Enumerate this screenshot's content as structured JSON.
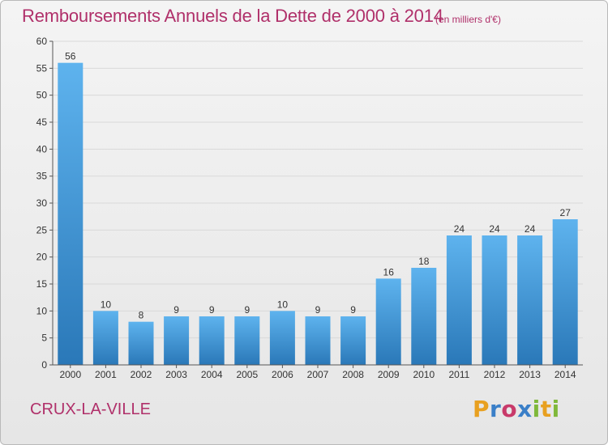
{
  "page": {
    "title": "Remboursements Annuels de la Dette de 2000 à 2014",
    "unit": "(en milliers d'€)",
    "commune": "CRUX-LA-VILLE",
    "logo": "Proxiti"
  },
  "colors": {
    "title": "#b0306a",
    "bar_light": "#5eb3ee",
    "bar_dark": "#2a78b8",
    "axis": "#555555",
    "grid": "#d9d9d9"
  },
  "chart_data": {
    "type": "bar",
    "title": "Remboursements Annuels de la Dette de 2000 à 2014",
    "subtitle": "(en milliers d'€)",
    "xlabel": "",
    "ylabel": "",
    "categories": [
      "2000",
      "2001",
      "2002",
      "2003",
      "2004",
      "2005",
      "2006",
      "2007",
      "2008",
      "2009",
      "2010",
      "2011",
      "2012",
      "2013",
      "2014"
    ],
    "values": [
      56,
      10,
      8,
      9,
      9,
      9,
      10,
      9,
      9,
      16,
      18,
      24,
      24,
      24,
      27
    ],
    "ylim": [
      0,
      60
    ],
    "yticks": [
      0,
      5,
      10,
      15,
      20,
      25,
      30,
      35,
      40,
      45,
      50,
      55,
      60
    ],
    "grid": true,
    "data_labels": true
  }
}
